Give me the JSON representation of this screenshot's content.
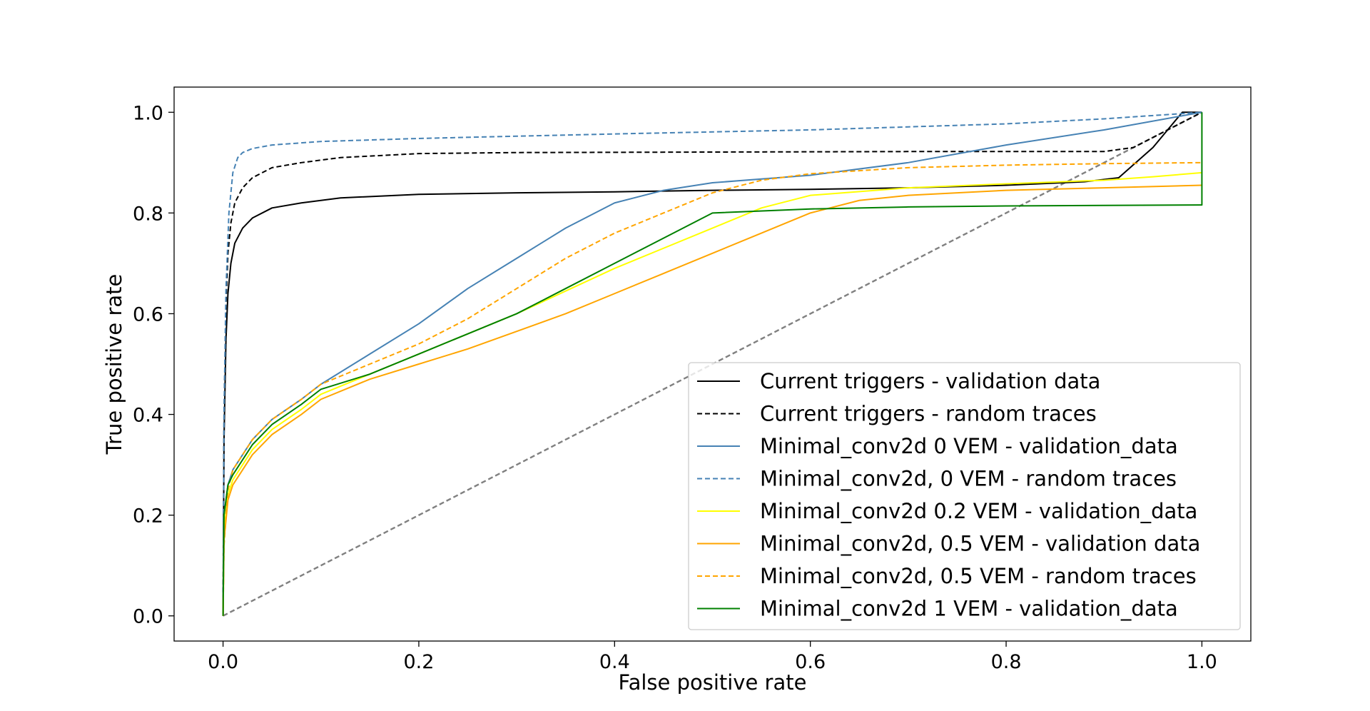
{
  "chart_data": {
    "type": "line",
    "title": "",
    "xlabel": "False positive rate",
    "ylabel": "True positive rate",
    "xlim": [
      -0.05,
      1.05
    ],
    "ylim": [
      -0.05,
      1.05
    ],
    "xticks": [
      "0.0",
      "0.2",
      "0.4",
      "0.6",
      "0.8",
      "1.0"
    ],
    "yticks": [
      "0.0",
      "0.2",
      "0.4",
      "0.6",
      "0.8",
      "1.0"
    ],
    "grid": false,
    "legend_position": "lower-right",
    "diagonal": {
      "x": [
        0,
        1
      ],
      "y": [
        0,
        1
      ],
      "color": "#808080",
      "style": "dashed"
    },
    "series": [
      {
        "name": "Current triggers - validation data",
        "color": "#000000",
        "style": "solid",
        "x": [
          0,
          0.001,
          0.003,
          0.005,
          0.008,
          0.012,
          0.02,
          0.03,
          0.05,
          0.08,
          0.12,
          0.2,
          0.3,
          0.4,
          0.5,
          0.6,
          0.7,
          0.8,
          0.88,
          0.915,
          0.95,
          0.98,
          1.0
        ],
        "y": [
          0,
          0.35,
          0.55,
          0.64,
          0.7,
          0.74,
          0.77,
          0.79,
          0.81,
          0.82,
          0.83,
          0.837,
          0.84,
          0.842,
          0.845,
          0.847,
          0.85,
          0.855,
          0.862,
          0.87,
          0.93,
          1.0,
          1.0
        ]
      },
      {
        "name": "Current triggers - random traces",
        "color": "#000000",
        "style": "dashed",
        "x": [
          0,
          0.001,
          0.003,
          0.005,
          0.008,
          0.012,
          0.02,
          0.03,
          0.05,
          0.08,
          0.12,
          0.2,
          0.3,
          0.5,
          0.7,
          0.9,
          0.93,
          0.96,
          1.0
        ],
        "y": [
          0,
          0.4,
          0.62,
          0.72,
          0.78,
          0.82,
          0.85,
          0.87,
          0.89,
          0.9,
          0.91,
          0.918,
          0.92,
          0.921,
          0.922,
          0.922,
          0.93,
          0.96,
          1.0
        ]
      },
      {
        "name": "Minimal_conv2d 0 VEM - validation_data",
        "color": "#4682b4",
        "style": "solid",
        "x": [
          0,
          0.001,
          0.005,
          0.01,
          0.02,
          0.03,
          0.05,
          0.08,
          0.1,
          0.15,
          0.2,
          0.25,
          0.3,
          0.35,
          0.4,
          0.45,
          0.5,
          0.6,
          0.7,
          0.8,
          0.9,
          1.0
        ],
        "y": [
          0,
          0.2,
          0.26,
          0.29,
          0.32,
          0.35,
          0.39,
          0.43,
          0.46,
          0.52,
          0.58,
          0.65,
          0.71,
          0.77,
          0.82,
          0.845,
          0.86,
          0.875,
          0.9,
          0.935,
          0.965,
          1.0
        ]
      },
      {
        "name": "Minimal_conv2d, 0 VEM - random traces",
        "color": "#4682b4",
        "style": "dashed",
        "x": [
          0,
          0.001,
          0.003,
          0.006,
          0.01,
          0.015,
          0.02,
          0.03,
          0.05,
          0.1,
          0.2,
          0.4,
          0.6,
          0.8,
          0.9,
          1.0
        ],
        "y": [
          0,
          0.4,
          0.65,
          0.8,
          0.88,
          0.91,
          0.92,
          0.928,
          0.935,
          0.942,
          0.948,
          0.957,
          0.965,
          0.977,
          0.987,
          1.0
        ]
      },
      {
        "name": "Minimal_conv2d 0.2 VEM - validation_data",
        "color": "#ffff00",
        "style": "solid",
        "x": [
          0,
          0.001,
          0.005,
          0.01,
          0.02,
          0.03,
          0.05,
          0.08,
          0.1,
          0.15,
          0.2,
          0.25,
          0.3,
          0.35,
          0.4,
          0.45,
          0.5,
          0.55,
          0.6,
          0.7,
          0.8,
          0.9,
          0.95,
          1.0
        ],
        "y": [
          0,
          0.17,
          0.24,
          0.27,
          0.3,
          0.33,
          0.37,
          0.41,
          0.44,
          0.48,
          0.52,
          0.56,
          0.6,
          0.645,
          0.69,
          0.73,
          0.77,
          0.81,
          0.835,
          0.85,
          0.858,
          0.865,
          0.872,
          0.88
        ]
      },
      {
        "name": "Minimal_conv2d, 0.5 VEM - validation data",
        "color": "#ffa500",
        "style": "solid",
        "x": [
          0,
          0.001,
          0.005,
          0.01,
          0.02,
          0.03,
          0.05,
          0.08,
          0.1,
          0.15,
          0.2,
          0.25,
          0.3,
          0.35,
          0.4,
          0.45,
          0.5,
          0.55,
          0.6,
          0.65,
          0.7,
          0.8,
          0.9,
          1.0
        ],
        "y": [
          0,
          0.15,
          0.23,
          0.26,
          0.29,
          0.32,
          0.36,
          0.4,
          0.43,
          0.47,
          0.5,
          0.53,
          0.565,
          0.6,
          0.64,
          0.68,
          0.72,
          0.76,
          0.8,
          0.825,
          0.835,
          0.845,
          0.85,
          0.855
        ]
      },
      {
        "name": "Minimal_conv2d, 0.5 VEM - random traces",
        "color": "#ffa500",
        "style": "dashed",
        "x": [
          0,
          0.001,
          0.005,
          0.01,
          0.02,
          0.03,
          0.05,
          0.08,
          0.1,
          0.15,
          0.2,
          0.25,
          0.3,
          0.35,
          0.4,
          0.45,
          0.5,
          0.55,
          0.6,
          0.7,
          0.8,
          0.9,
          1.0
        ],
        "y": [
          0,
          0.14,
          0.25,
          0.29,
          0.32,
          0.35,
          0.39,
          0.43,
          0.46,
          0.5,
          0.54,
          0.59,
          0.65,
          0.71,
          0.76,
          0.8,
          0.84,
          0.865,
          0.878,
          0.89,
          0.895,
          0.898,
          0.9
        ]
      },
      {
        "name": "Minimal_conv2d 1 VEM - validation_data",
        "color": "#008000",
        "style": "solid",
        "x": [
          0,
          0.001,
          0.005,
          0.01,
          0.02,
          0.03,
          0.05,
          0.08,
          0.1,
          0.15,
          0.2,
          0.25,
          0.3,
          0.35,
          0.4,
          0.45,
          0.5,
          0.6,
          0.7,
          0.8,
          0.9,
          0.998,
          1.0,
          1.0
        ],
        "y": [
          0,
          0.2,
          0.26,
          0.28,
          0.31,
          0.34,
          0.38,
          0.42,
          0.45,
          0.48,
          0.52,
          0.56,
          0.6,
          0.65,
          0.7,
          0.75,
          0.8,
          0.808,
          0.812,
          0.814,
          0.815,
          0.816,
          0.816,
          1.0
        ]
      }
    ]
  }
}
